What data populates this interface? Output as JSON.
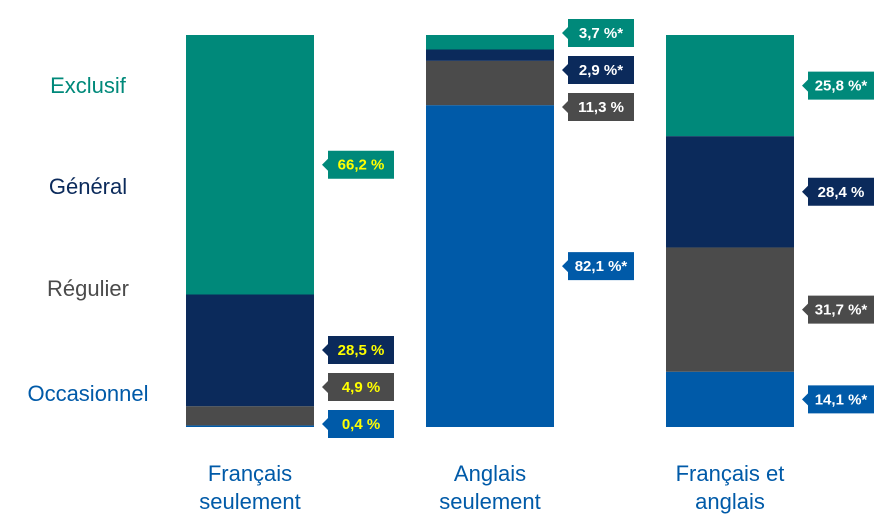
{
  "chart_data": {
    "type": "stacked_bar_100",
    "categories": [
      [
        "Français",
        "seulement"
      ],
      [
        "Anglais",
        "seulement"
      ],
      [
        "Français et",
        "anglais"
      ]
    ],
    "series": [
      {
        "name": "Occasionnel",
        "color": "#005aa8",
        "values": [
          0.4,
          82.1,
          14.1
        ],
        "value_labels": [
          "0,4 %",
          "82,1 %*",
          "14,1 %*"
        ]
      },
      {
        "name": "Régulier",
        "color": "#4b4b4b",
        "values": [
          4.9,
          11.3,
          31.7
        ],
        "value_labels": [
          "4,9 %",
          "11,3 %",
          "31,7 %*"
        ]
      },
      {
        "name": "Général",
        "color": "#0b2a5b",
        "values": [
          28.5,
          2.9,
          28.4
        ],
        "value_labels": [
          "28,5 %",
          "2,9 %*",
          "28,4 %"
        ]
      },
      {
        "name": "Exclusif",
        "color": "#00897a",
        "values": [
          66.2,
          3.7,
          25.8
        ],
        "value_labels": [
          "66,2 %",
          "3,7 %*",
          "25,8 %*"
        ]
      }
    ],
    "ylim": [
      0,
      100
    ],
    "label_text_colors": [
      "#ffff00",
      "#ffffff",
      "#ffffff"
    ]
  }
}
